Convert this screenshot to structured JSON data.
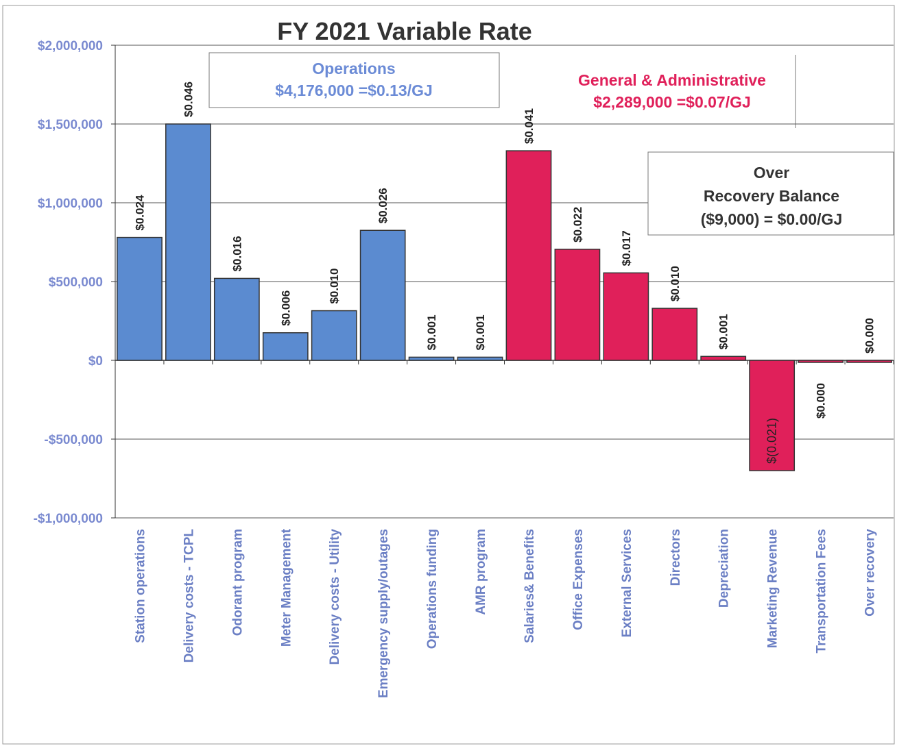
{
  "chart_data": {
    "type": "bar",
    "title": "FY 2021 Variable Rate",
    "categories": [
      "Station operations",
      "Delivery costs - TCPL",
      "Odorant program",
      "Meter Management",
      "Delivery costs - Utility",
      "Emergency supply/outages",
      "Operations funding",
      "AMR program",
      "Salaries& Benefits",
      "Office Expenses",
      "External Services",
      "Directors",
      "Depreciation",
      "Marketing Revenue",
      "Transportation Fees",
      "Over recovery"
    ],
    "values": [
      780000,
      1500000,
      520000,
      175000,
      315000,
      825000,
      20000,
      20000,
      1330000,
      705000,
      555000,
      330000,
      25000,
      -700000,
      -5000,
      -9000
    ],
    "rate_labels": [
      "$0.024",
      "$0.046",
      "$0.016",
      "$0.006",
      "$0.010",
      "$0.026",
      "$0.001",
      "$0.001",
      "$0.041",
      "$0.022",
      "$0.017",
      "$0.010",
      "$0.001",
      "$(0.021)",
      "$0.000",
      "$0.000"
    ],
    "colors": [
      "#5b8bd0",
      "#5b8bd0",
      "#5b8bd0",
      "#5b8bd0",
      "#5b8bd0",
      "#5b8bd0",
      "#5b8bd0",
      "#5b8bd0",
      "#e0205a",
      "#e0205a",
      "#e0205a",
      "#e0205a",
      "#e0205a",
      "#e0205a",
      "#e0205a",
      "#e0205a"
    ],
    "ylim": [
      -1000000,
      2000000
    ],
    "yticks": [
      {
        "value": -1000000,
        "label": "-$1,000,000"
      },
      {
        "value": -500000,
        "label": "-$500,000"
      },
      {
        "value": 0,
        "label": "$0"
      },
      {
        "value": 500000,
        "label": "$500,000"
      },
      {
        "value": 1000000,
        "label": "$1,000,000"
      },
      {
        "value": 1500000,
        "label": "$1,500,000"
      },
      {
        "value": 2000000,
        "label": "$2,000,000"
      }
    ],
    "grid": true,
    "annotations": {
      "operations": [
        "Operations",
        "$4,176,000 =$0.13/GJ"
      ],
      "general": [
        "General & Administrative",
        "$2,289,000 =$0.07/GJ"
      ],
      "over": [
        "Over",
        "Recovery Balance",
        "($9,000) = $0.00/GJ"
      ]
    }
  }
}
